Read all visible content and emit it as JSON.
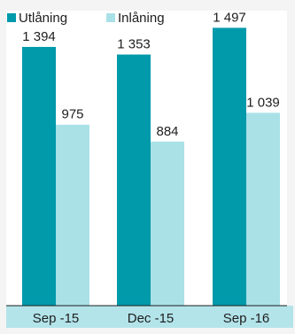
{
  "chart_data": {
    "type": "bar",
    "categories": [
      "Sep -15",
      "Dec -15",
      "Sep -16"
    ],
    "series": [
      {
        "name": "Utlåning",
        "color": "#009aab",
        "values": [
          1394,
          1353,
          1497
        ]
      },
      {
        "name": "Inlåning",
        "color": "#a9e1e7",
        "values": [
          975,
          884,
          1039
        ]
      }
    ],
    "data_labels": [
      [
        "1 394",
        "1 353",
        "1 497"
      ],
      [
        "975",
        "884",
        "1 039"
      ]
    ],
    "ylim": [
      0,
      1580
    ],
    "grid": false,
    "legend": "top-left"
  }
}
